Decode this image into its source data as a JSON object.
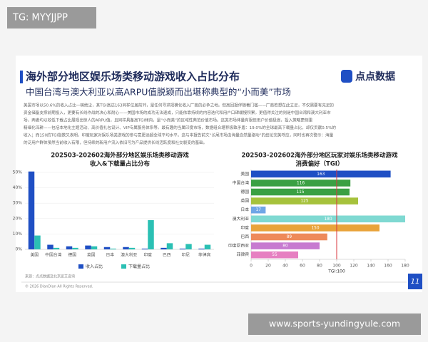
{
  "tag": "TG: MYYJJPP",
  "url": "www.sports-yundingyule.com",
  "header": {
    "title": "海外部分地区娱乐场类移动游戏收入占比分布",
    "subtitle": "中国台湾与澳大利亚以高ARPU值脱颖而出堪称典型的“小而美”市场",
    "logo": "点点数据"
  },
  "body_text": [
    "美国市场以50.6%的收入占比一骑绝尘，其TGI高达163同样位居前列，是任何寻求规模化收入厂商的必争之地。但高回报伴随着门槛——厂商若想在此立足，不仅需要有充足的",
    "资金储备支撑前期投入，更要有长线作战的决心和耐心——美国市场的成功无法速成，只能依靠持续的内容迭代和用户口碑缓慢积累。更值得关注的则是中国台湾和澳大利亚市",
    "场，两者均以较低下载占比展现出惊人的ARPU值，且同样具备高TGI倾向，是“小而美”的区域性典范价值市场。这类市场体量有限但用户价值极高，投入策略更侧重",
    "精细化深耕——包括本地化主题活动、高价值礼包设计、VIP专属服务体系等。最有趣的当属印度市场，数据组合堪称极致矛盾：19.0%的全球最高下载量占比，却仅贡献0.5%的",
    "收入；而150的TGI指数又表明，印度玩家对娱乐场类游戏的参与意愿远超全球平均水平。这与本报告前文“长尾市场由海量自然量驱动”的结论完美呼应，同时也再次警示：海量",
    "的泛用户群体虽然当前收入有限，但持续的新用户流入依旧可为产品提供长线活跃度和社交裂变的基础。"
  ],
  "footer": {
    "source": "来源：点点数据及北京凯艾咨询",
    "copyright": "© 2026 DianDian All Rights Reserved.",
    "page": "11"
  },
  "chart_data": [
    {
      "type": "grouped_bar",
      "title": [
        "202503-202602海外部分地区娱乐场类移动游戏",
        "收入&下载量占比分布"
      ],
      "categories": [
        "美国",
        "中国台湾",
        "德国",
        "英国",
        "日本",
        "澳大利亚",
        "印度",
        "巴西",
        "印尼",
        "菲律宾"
      ],
      "series": [
        {
          "name": "收入占比",
          "color": "#1f4fc4",
          "values": [
            50.6,
            3,
            2,
            2.5,
            1.5,
            1.5,
            0.5,
            1,
            0.5,
            0.5
          ]
        },
        {
          "name": "下载量占比",
          "color": "#2bc0b4",
          "values": [
            9,
            1,
            1,
            2,
            0.5,
            1,
            19.0,
            4,
            3.5,
            3
          ]
        }
      ],
      "ylim": [
        0,
        50
      ],
      "yticks": [
        {
          "value": 0,
          "label": "0%"
        },
        {
          "value": 10,
          "label": "10%"
        },
        {
          "value": 20,
          "label": "20%"
        },
        {
          "value": 30,
          "label": "30%"
        },
        {
          "value": 40,
          "label": "40%"
        },
        {
          "value": 50,
          "label": "50%"
        }
      ],
      "legend": "bottom"
    },
    {
      "type": "hbar",
      "title": [
        "202503-202602海外部分地区玩家对娱乐场类移动游戏",
        "消费偏好（TGI）"
      ],
      "categories": [
        "美国",
        "中国台湾",
        "德国",
        "英国",
        "日本",
        "澳大利亚",
        "印度",
        "巴西",
        "印度尼西亚",
        "菲律宾"
      ],
      "values": [
        163,
        116,
        115,
        125,
        17,
        180,
        150,
        89,
        80,
        55
      ],
      "colors": [
        "#1f4fc4",
        "#3aa043",
        "#3aa043",
        "#a6c23c",
        "#6fa6e6",
        "#7fd9d2",
        "#e9a33a",
        "#ee8a5a",
        "#c77ad0",
        "#e67fc1"
      ],
      "xlim": [
        0,
        180
      ],
      "xticks": [
        0,
        20,
        40,
        60,
        80,
        100,
        120,
        140,
        160,
        180
      ],
      "reference": {
        "value": 100,
        "label": "TGI:100",
        "color": "#d9363e"
      }
    }
  ]
}
